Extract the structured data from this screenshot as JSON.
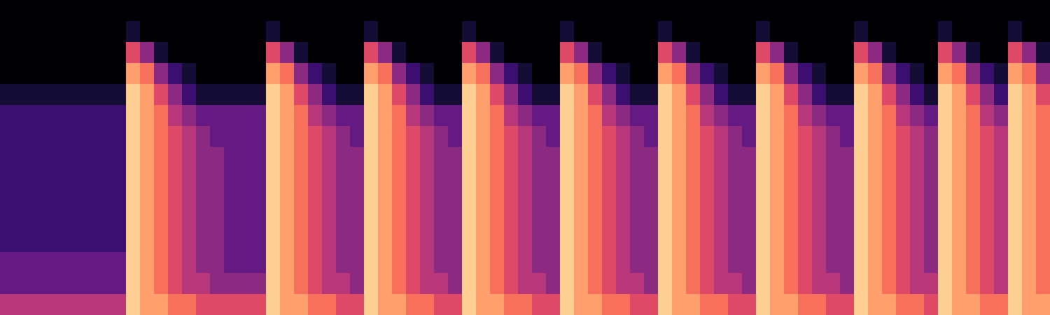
{
  "chart_data": {
    "type": "heatmap",
    "color": "magma",
    "tick_labels": false,
    "value_range": [
      0,
      10
    ],
    "cells": [
      [
        0,
        0,
        0,
        0,
        1,
        2,
        2,
        2,
        2,
        2,
        2,
        2,
        3,
        3,
        5
      ],
      [
        0,
        0,
        0,
        0,
        1,
        2,
        2,
        2,
        2,
        2,
        2,
        2,
        3,
        3,
        5
      ],
      [
        0,
        0,
        0,
        0,
        1,
        2,
        2,
        2,
        2,
        2,
        2,
        2,
        3,
        3,
        5
      ],
      [
        0,
        0,
        0,
        0,
        1,
        2,
        2,
        2,
        2,
        2,
        2,
        2,
        3,
        3,
        5
      ],
      [
        0,
        0,
        0,
        0,
        1,
        2,
        2,
        2,
        2,
        2,
        2,
        2,
        3,
        3,
        5
      ],
      [
        0,
        0,
        0,
        0,
        1,
        2,
        2,
        2,
        2,
        2,
        2,
        2,
        3,
        3,
        5
      ],
      [
        0,
        0,
        0,
        0,
        1,
        2,
        2,
        2,
        2,
        2,
        2,
        2,
        3,
        3,
        5
      ],
      [
        0,
        0,
        0,
        0,
        1,
        2,
        2,
        2,
        2,
        2,
        2,
        2,
        3,
        3,
        5
      ],
      [
        0,
        0,
        0,
        0,
        1,
        2,
        2,
        2,
        2,
        2,
        2,
        2,
        3,
        3,
        5
      ],
      [
        0,
        1,
        6,
        8,
        9,
        9,
        9,
        9,
        9,
        9,
        9,
        9,
        9,
        9,
        9
      ],
      [
        0,
        0,
        4,
        7,
        8,
        8,
        8,
        8,
        8,
        8,
        8,
        8,
        8,
        8,
        8
      ],
      [
        0,
        0,
        1,
        4,
        6,
        7,
        7,
        7,
        7,
        7,
        7,
        7,
        7,
        7,
        8
      ],
      [
        0,
        0,
        0,
        2,
        4,
        5,
        6,
        6,
        6,
        6,
        6,
        6,
        6,
        6,
        7
      ],
      [
        0,
        0,
        0,
        1,
        2,
        4,
        5,
        5,
        5,
        5,
        5,
        5,
        5,
        5,
        7
      ],
      [
        0,
        0,
        0,
        0,
        1,
        3,
        4,
        4,
        4,
        4,
        4,
        4,
        4,
        5,
        6
      ],
      [
        0,
        0,
        0,
        0,
        1,
        3,
        3,
        4,
        4,
        4,
        4,
        4,
        4,
        4,
        6
      ],
      [
        0,
        0,
        0,
        0,
        1,
        3,
        3,
        3,
        3,
        3,
        3,
        3,
        3,
        4,
        6
      ],
      [
        0,
        0,
        0,
        0,
        1,
        3,
        3,
        3,
        3,
        3,
        3,
        3,
        3,
        4,
        6
      ],
      [
        0,
        0,
        0,
        0,
        1,
        3,
        3,
        3,
        3,
        3,
        3,
        3,
        3,
        4,
        6
      ],
      [
        0,
        1,
        6,
        8,
        9,
        9,
        9,
        9,
        9,
        9,
        9,
        9,
        9,
        9,
        9
      ],
      [
        0,
        0,
        4,
        7,
        8,
        8,
        8,
        8,
        8,
        8,
        8,
        8,
        8,
        8,
        8
      ],
      [
        0,
        0,
        1,
        4,
        6,
        7,
        7,
        7,
        7,
        7,
        7,
        7,
        7,
        7,
        8
      ],
      [
        0,
        0,
        0,
        2,
        4,
        5,
        6,
        6,
        6,
        6,
        6,
        6,
        6,
        6,
        7
      ],
      [
        0,
        0,
        0,
        1,
        2,
        4,
        5,
        5,
        5,
        5,
        5,
        5,
        5,
        5,
        7
      ],
      [
        0,
        0,
        0,
        0,
        1,
        3,
        4,
        4,
        4,
        4,
        4,
        4,
        4,
        5,
        6
      ],
      [
        0,
        0,
        0,
        0,
        1,
        3,
        3,
        4,
        4,
        4,
        4,
        4,
        4,
        4,
        6
      ],
      [
        0,
        1,
        6,
        8,
        9,
        9,
        9,
        9,
        9,
        9,
        9,
        9,
        9,
        9,
        9
      ],
      [
        0,
        0,
        4,
        7,
        8,
        8,
        8,
        8,
        8,
        8,
        8,
        8,
        8,
        8,
        8
      ],
      [
        0,
        0,
        1,
        4,
        6,
        7,
        7,
        7,
        7,
        7,
        7,
        7,
        7,
        7,
        8
      ],
      [
        0,
        0,
        0,
        2,
        4,
        5,
        6,
        6,
        6,
        6,
        6,
        6,
        6,
        6,
        7
      ],
      [
        0,
        0,
        0,
        1,
        2,
        4,
        5,
        5,
        5,
        5,
        5,
        5,
        5,
        5,
        7
      ],
      [
        0,
        0,
        0,
        0,
        1,
        3,
        4,
        4,
        4,
        4,
        4,
        4,
        4,
        5,
        6
      ],
      [
        0,
        0,
        0,
        0,
        1,
        3,
        3,
        4,
        4,
        4,
        4,
        4,
        4,
        4,
        6
      ],
      [
        0,
        1,
        6,
        8,
        9,
        9,
        9,
        9,
        9,
        9,
        9,
        9,
        9,
        9,
        9
      ],
      [
        0,
        0,
        4,
        7,
        8,
        8,
        8,
        8,
        8,
        8,
        8,
        8,
        8,
        8,
        8
      ],
      [
        0,
        0,
        1,
        4,
        6,
        7,
        7,
        7,
        7,
        7,
        7,
        7,
        7,
        7,
        8
      ],
      [
        0,
        0,
        0,
        2,
        4,
        5,
        6,
        6,
        6,
        6,
        6,
        6,
        6,
        6,
        7
      ],
      [
        0,
        0,
        0,
        1,
        2,
        4,
        5,
        5,
        5,
        5,
        5,
        5,
        5,
        5,
        7
      ],
      [
        0,
        0,
        0,
        0,
        1,
        3,
        4,
        4,
        4,
        4,
        4,
        4,
        4,
        5,
        6
      ],
      [
        0,
        0,
        0,
        0,
        1,
        3,
        3,
        4,
        4,
        4,
        4,
        4,
        4,
        4,
        6
      ],
      [
        0,
        1,
        6,
        8,
        9,
        9,
        9,
        9,
        9,
        9,
        9,
        9,
        9,
        9,
        9
      ],
      [
        0,
        0,
        4,
        7,
        8,
        8,
        8,
        8,
        8,
        8,
        8,
        8,
        8,
        8,
        8
      ],
      [
        0,
        0,
        1,
        4,
        6,
        7,
        7,
        7,
        7,
        7,
        7,
        7,
        7,
        7,
        8
      ],
      [
        0,
        0,
        0,
        2,
        4,
        5,
        6,
        6,
        6,
        6,
        6,
        6,
        6,
        6,
        7
      ],
      [
        0,
        0,
        0,
        1,
        2,
        4,
        5,
        5,
        5,
        5,
        5,
        5,
        5,
        5,
        7
      ],
      [
        0,
        0,
        0,
        0,
        1,
        3,
        4,
        4,
        4,
        4,
        4,
        4,
        4,
        5,
        6
      ],
      [
        0,
        0,
        0,
        0,
        1,
        3,
        3,
        4,
        4,
        4,
        4,
        4,
        4,
        4,
        6
      ],
      [
        0,
        1,
        6,
        8,
        9,
        9,
        9,
        9,
        9,
        9,
        9,
        9,
        9,
        9,
        9
      ],
      [
        0,
        0,
        4,
        7,
        8,
        8,
        8,
        8,
        8,
        8,
        8,
        8,
        8,
        8,
        8
      ],
      [
        0,
        0,
        1,
        4,
        6,
        7,
        7,
        7,
        7,
        7,
        7,
        7,
        7,
        7,
        8
      ],
      [
        0,
        0,
        0,
        2,
        4,
        5,
        6,
        6,
        6,
        6,
        6,
        6,
        6,
        6,
        7
      ],
      [
        0,
        0,
        0,
        1,
        2,
        4,
        5,
        5,
        5,
        5,
        5,
        5,
        5,
        5,
        7
      ],
      [
        0,
        0,
        0,
        0,
        1,
        3,
        4,
        4,
        4,
        4,
        4,
        4,
        4,
        5,
        6
      ],
      [
        0,
        0,
        0,
        0,
        1,
        3,
        3,
        4,
        4,
        4,
        4,
        4,
        4,
        4,
        6
      ],
      [
        0,
        1,
        6,
        8,
        9,
        9,
        9,
        9,
        9,
        9,
        9,
        9,
        9,
        9,
        9
      ],
      [
        0,
        0,
        4,
        7,
        8,
        8,
        8,
        8,
        8,
        8,
        8,
        8,
        8,
        8,
        8
      ],
      [
        0,
        0,
        1,
        4,
        6,
        7,
        7,
        7,
        7,
        7,
        7,
        7,
        7,
        7,
        8
      ],
      [
        0,
        0,
        0,
        2,
        4,
        5,
        6,
        6,
        6,
        6,
        6,
        6,
        6,
        6,
        7
      ],
      [
        0,
        0,
        0,
        1,
        2,
        4,
        5,
        5,
        5,
        5,
        5,
        5,
        5,
        5,
        7
      ],
      [
        0,
        0,
        0,
        0,
        1,
        3,
        4,
        4,
        4,
        4,
        4,
        4,
        4,
        5,
        6
      ],
      [
        0,
        0,
        0,
        0,
        1,
        3,
        3,
        4,
        4,
        4,
        4,
        4,
        4,
        4,
        6
      ],
      [
        0,
        1,
        6,
        8,
        9,
        9,
        9,
        9,
        9,
        9,
        9,
        9,
        9,
        9,
        9
      ],
      [
        0,
        0,
        4,
        7,
        8,
        8,
        8,
        8,
        8,
        8,
        8,
        8,
        8,
        8,
        8
      ],
      [
        0,
        0,
        1,
        4,
        6,
        7,
        7,
        7,
        7,
        7,
        7,
        7,
        7,
        7,
        8
      ],
      [
        0,
        0,
        0,
        2,
        4,
        5,
        6,
        6,
        6,
        6,
        6,
        6,
        6,
        6,
        7
      ],
      [
        0,
        0,
        0,
        1,
        2,
        4,
        5,
        5,
        5,
        5,
        5,
        5,
        5,
        5,
        7
      ],
      [
        0,
        0,
        0,
        0,
        1,
        3,
        4,
        4,
        4,
        4,
        4,
        4,
        4,
        5,
        6
      ],
      [
        0,
        1,
        6,
        8,
        9,
        9,
        9,
        9,
        9,
        9,
        9,
        9,
        9,
        9,
        9
      ],
      [
        0,
        0,
        4,
        7,
        8,
        8,
        8,
        8,
        8,
        8,
        8,
        8,
        8,
        8,
        8
      ],
      [
        0,
        0,
        1,
        4,
        6,
        7,
        7,
        7,
        7,
        7,
        7,
        7,
        7,
        7,
        8
      ],
      [
        0,
        0,
        0,
        2,
        4,
        5,
        6,
        6,
        6,
        6,
        6,
        6,
        6,
        6,
        7
      ],
      [
        0,
        0,
        0,
        1,
        2,
        4,
        5,
        5,
        5,
        5,
        5,
        5,
        5,
        5,
        7
      ],
      [
        0,
        1,
        6,
        8,
        9,
        9,
        9,
        9,
        9,
        9,
        9,
        9,
        9,
        9,
        9
      ],
      [
        0,
        0,
        4,
        7,
        8,
        8,
        8,
        8,
        8,
        8,
        8,
        8,
        8,
        8,
        8
      ],
      [
        0,
        0,
        1,
        4,
        6,
        7,
        7,
        7,
        7,
        7,
        7,
        7,
        7,
        7,
        8
      ]
    ]
  }
}
